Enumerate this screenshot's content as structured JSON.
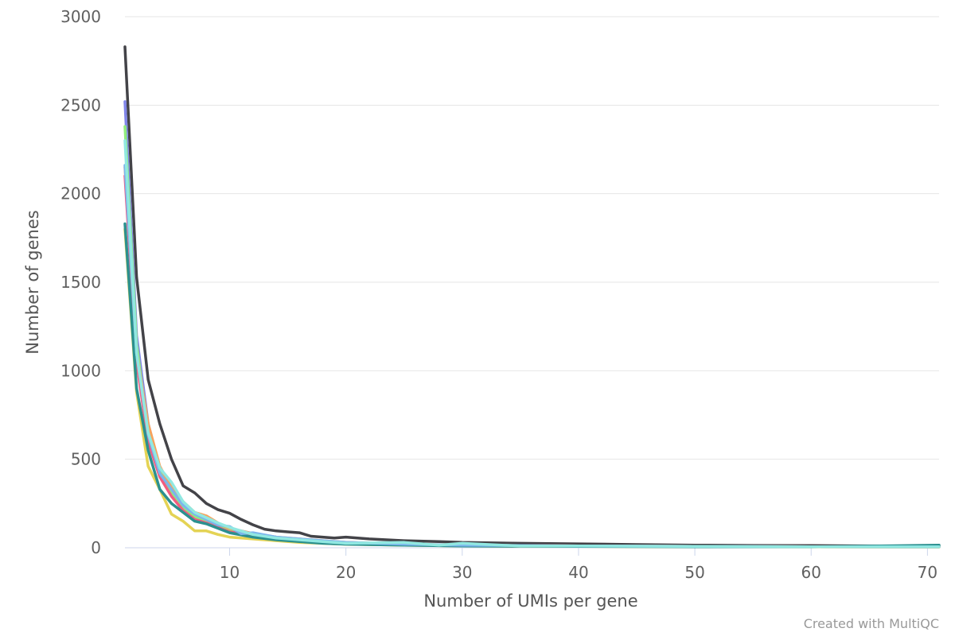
{
  "credit": "Created with MultiQC",
  "chart_data": {
    "type": "line",
    "title": "",
    "xlabel": "Number of UMIs per gene",
    "ylabel": "Number of genes",
    "xlim": [
      1,
      71
    ],
    "ylim": [
      0,
      3000
    ],
    "x_ticks": [
      10,
      20,
      30,
      40,
      50,
      60,
      70
    ],
    "y_ticks": [
      0,
      500,
      1000,
      1500,
      2000,
      2500,
      3000
    ],
    "grid": true,
    "legend": "none",
    "series": [
      {
        "color": "#434348",
        "points": [
          [
            1,
            2830
          ],
          [
            2,
            1530
          ],
          [
            3,
            950
          ],
          [
            4,
            700
          ],
          [
            5,
            500
          ],
          [
            6,
            350
          ],
          [
            7,
            310
          ],
          [
            8,
            250
          ],
          [
            9,
            215
          ],
          [
            10,
            195
          ],
          [
            11,
            160
          ],
          [
            12,
            130
          ],
          [
            13,
            105
          ],
          [
            14,
            95
          ],
          [
            15,
            90
          ],
          [
            16,
            85
          ],
          [
            17,
            65
          ],
          [
            18,
            60
          ],
          [
            19,
            55
          ],
          [
            20,
            60
          ],
          [
            22,
            50
          ],
          [
            25,
            40
          ],
          [
            28,
            35
          ],
          [
            30,
            30
          ],
          [
            35,
            25
          ],
          [
            40,
            22
          ],
          [
            45,
            18
          ],
          [
            50,
            15
          ],
          [
            55,
            13
          ],
          [
            60,
            12
          ],
          [
            65,
            10
          ],
          [
            71,
            10
          ]
        ]
      },
      {
        "color": "#8085e9",
        "points": [
          [
            1,
            2520
          ],
          [
            2,
            1200
          ],
          [
            3,
            700
          ],
          [
            4,
            450
          ],
          [
            5,
            330
          ],
          [
            6,
            250
          ],
          [
            7,
            190
          ],
          [
            8,
            160
          ],
          [
            9,
            130
          ],
          [
            10,
            110
          ],
          [
            12,
            80
          ],
          [
            14,
            60
          ],
          [
            16,
            45
          ],
          [
            18,
            35
          ],
          [
            20,
            30
          ],
          [
            25,
            20
          ],
          [
            30,
            15
          ],
          [
            40,
            10
          ],
          [
            50,
            8
          ],
          [
            60,
            6
          ],
          [
            71,
            5
          ]
        ]
      },
      {
        "color": "#90ed7d",
        "points": [
          [
            1,
            2380
          ],
          [
            2,
            1150
          ],
          [
            3,
            650
          ],
          [
            4,
            430
          ],
          [
            5,
            310
          ],
          [
            6,
            230
          ],
          [
            7,
            175
          ],
          [
            8,
            150
          ],
          [
            9,
            125
          ],
          [
            10,
            100
          ],
          [
            12,
            75
          ],
          [
            14,
            55
          ],
          [
            16,
            45
          ],
          [
            18,
            35
          ],
          [
            20,
            28
          ],
          [
            25,
            18
          ],
          [
            30,
            14
          ],
          [
            40,
            10
          ],
          [
            50,
            8
          ],
          [
            60,
            6
          ],
          [
            71,
            5
          ]
        ]
      },
      {
        "color": "#f7a35c",
        "points": [
          [
            1,
            2150
          ],
          [
            2,
            1100
          ],
          [
            3,
            700
          ],
          [
            4,
            460
          ],
          [
            5,
            340
          ],
          [
            6,
            260
          ],
          [
            7,
            200
          ],
          [
            8,
            180
          ],
          [
            9,
            140
          ],
          [
            10,
            110
          ],
          [
            12,
            80
          ],
          [
            14,
            60
          ],
          [
            16,
            50
          ],
          [
            18,
            40
          ],
          [
            20,
            30
          ],
          [
            25,
            20
          ],
          [
            30,
            15
          ],
          [
            40,
            10
          ],
          [
            50,
            8
          ],
          [
            60,
            6
          ],
          [
            71,
            5
          ]
        ]
      },
      {
        "color": "#e4d354",
        "points": [
          [
            1,
            1800
          ],
          [
            2,
            880
          ],
          [
            3,
            460
          ],
          [
            4,
            330
          ],
          [
            5,
            190
          ],
          [
            6,
            150
          ],
          [
            7,
            95
          ],
          [
            8,
            95
          ],
          [
            9,
            75
          ],
          [
            10,
            60
          ],
          [
            12,
            50
          ],
          [
            14,
            40
          ],
          [
            16,
            30
          ],
          [
            18,
            25
          ],
          [
            20,
            20
          ],
          [
            25,
            15
          ],
          [
            30,
            10
          ],
          [
            40,
            8
          ],
          [
            50,
            6
          ],
          [
            60,
            5
          ],
          [
            71,
            4
          ]
        ]
      },
      {
        "color": "#f15c80",
        "points": [
          [
            1,
            2100
          ],
          [
            2,
            1050
          ],
          [
            3,
            600
          ],
          [
            4,
            400
          ],
          [
            5,
            290
          ],
          [
            6,
            210
          ],
          [
            7,
            160
          ],
          [
            8,
            140
          ],
          [
            9,
            115
          ],
          [
            10,
            90
          ],
          [
            12,
            70
          ],
          [
            14,
            55
          ],
          [
            16,
            45
          ],
          [
            18,
            35
          ],
          [
            20,
            28
          ],
          [
            25,
            18
          ],
          [
            30,
            14
          ],
          [
            40,
            10
          ],
          [
            50,
            8
          ],
          [
            60,
            6
          ],
          [
            71,
            5
          ]
        ]
      },
      {
        "color": "#2b908f",
        "points": [
          [
            1,
            1830
          ],
          [
            2,
            900
          ],
          [
            3,
            550
          ],
          [
            4,
            330
          ],
          [
            5,
            250
          ],
          [
            6,
            200
          ],
          [
            7,
            150
          ],
          [
            8,
            135
          ],
          [
            9,
            110
          ],
          [
            10,
            85
          ],
          [
            12,
            60
          ],
          [
            14,
            45
          ],
          [
            16,
            35
          ],
          [
            18,
            25
          ],
          [
            20,
            20
          ],
          [
            25,
            15
          ],
          [
            30,
            10
          ],
          [
            40,
            8
          ],
          [
            50,
            6
          ],
          [
            60,
            5
          ],
          [
            71,
            15
          ]
        ]
      },
      {
        "color": "#7cb5ec",
        "points": [
          [
            1,
            2160
          ],
          [
            2,
            1100
          ],
          [
            3,
            640
          ],
          [
            4,
            420
          ],
          [
            5,
            330
          ],
          [
            6,
            240
          ],
          [
            7,
            190
          ],
          [
            8,
            160
          ],
          [
            9,
            130
          ],
          [
            10,
            120
          ],
          [
            11,
            80
          ],
          [
            12,
            85
          ],
          [
            14,
            60
          ],
          [
            16,
            50
          ],
          [
            18,
            40
          ],
          [
            20,
            30
          ],
          [
            25,
            20
          ],
          [
            30,
            15
          ],
          [
            40,
            10
          ],
          [
            50,
            8
          ],
          [
            60,
            6
          ],
          [
            71,
            5
          ]
        ]
      },
      {
        "color": "#91e8e1",
        "points": [
          [
            1,
            2300
          ],
          [
            2,
            1100
          ],
          [
            3,
            650
          ],
          [
            4,
            450
          ],
          [
            5,
            370
          ],
          [
            6,
            260
          ],
          [
            7,
            200
          ],
          [
            8,
            170
          ],
          [
            9,
            140
          ],
          [
            10,
            115
          ],
          [
            12,
            75
          ],
          [
            14,
            55
          ],
          [
            16,
            45
          ],
          [
            18,
            35
          ],
          [
            20,
            25
          ],
          [
            25,
            30
          ],
          [
            28,
            15
          ],
          [
            30,
            25
          ],
          [
            35,
            10
          ],
          [
            40,
            10
          ],
          [
            50,
            8
          ],
          [
            60,
            6
          ],
          [
            71,
            5
          ]
        ]
      }
    ]
  }
}
